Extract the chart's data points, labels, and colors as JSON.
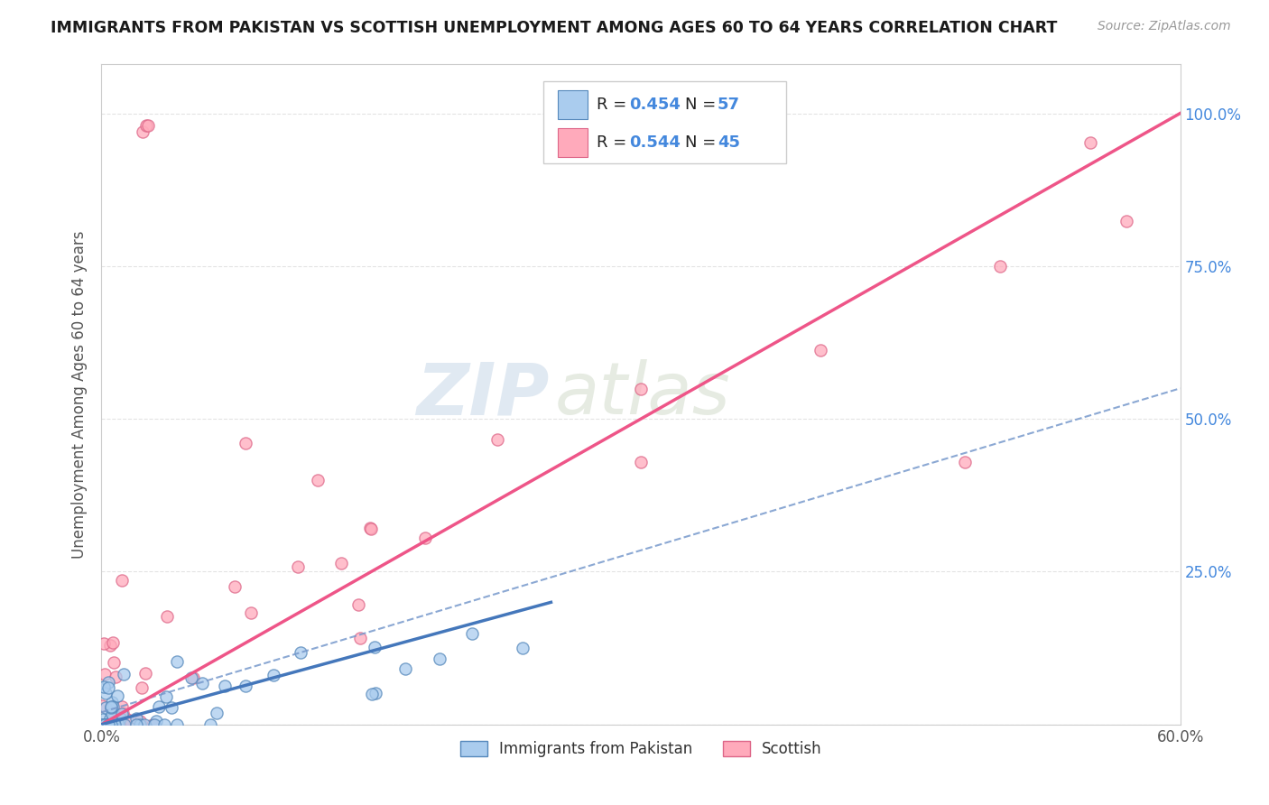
{
  "title": "IMMIGRANTS FROM PAKISTAN VS SCOTTISH UNEMPLOYMENT AMONG AGES 60 TO 64 YEARS CORRELATION CHART",
  "source": "Source: ZipAtlas.com",
  "ylabel": "Unemployment Among Ages 60 to 64 years",
  "xlim": [
    0.0,
    0.6
  ],
  "ylim": [
    0.0,
    1.08
  ],
  "ytick_vals": [
    0.0,
    0.25,
    0.5,
    0.75,
    1.0
  ],
  "xtick_vals": [
    0.0,
    0.1,
    0.2,
    0.3,
    0.4,
    0.5,
    0.6
  ],
  "blue_R": 0.454,
  "blue_N": 57,
  "pink_R": 0.544,
  "pink_N": 45,
  "watermark_zip": "ZIP",
  "watermark_atlas": "atlas",
  "background_color": "#ffffff",
  "grid_color": "#dddddd",
  "title_color": "#1a1a1a",
  "axis_label_color": "#555555",
  "blue_solid_line": {
    "x0": 0.0,
    "y0": 0.0,
    "x1": 0.25,
    "y1": 0.2,
    "color": "#4477bb",
    "lw": 2.5
  },
  "blue_dashed_line": {
    "x0": 0.0,
    "y0": 0.02,
    "x1": 0.6,
    "y1": 0.55,
    "color": "#7799cc",
    "lw": 1.5
  },
  "pink_line": {
    "x0": 0.0,
    "y0": 0.0,
    "x1": 0.6,
    "y1": 1.0,
    "color": "#ee5588",
    "lw": 2.5
  },
  "blue_scatter_color": "#aaccee",
  "blue_scatter_edge": "#5588bb",
  "pink_scatter_color": "#ffaabb",
  "pink_scatter_edge": "#dd6688",
  "right_ytick_color": "#4488dd",
  "legend_label_color": "#222222"
}
